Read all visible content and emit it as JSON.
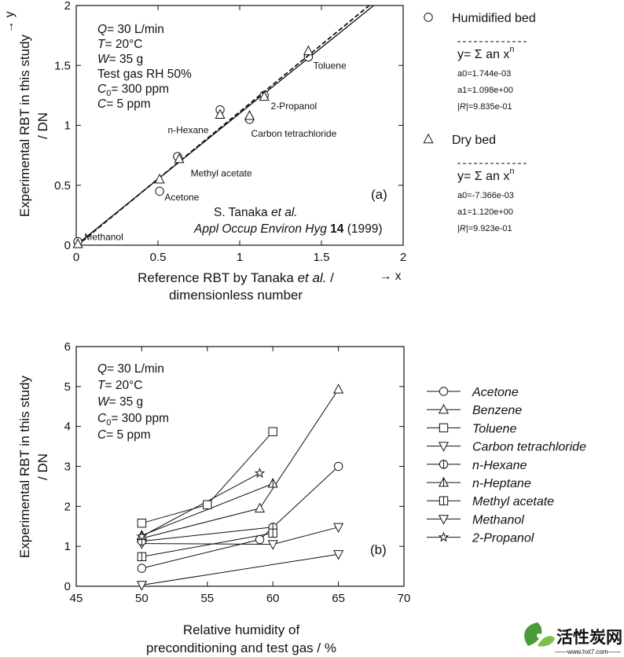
{
  "chart_data": [
    {
      "panel": "a",
      "type": "scatter",
      "xlabel_lines": [
        "Reference RBT by Tanaka",
        "et al.",
        "/",
        "dimensionless number"
      ],
      "ylabel_lines": [
        "Experimental RBT in this study",
        "/ DN"
      ],
      "panel_label": "(a)",
      "x_arrow_label": "→ x",
      "y_arrow_label": "→ y",
      "xlim": [
        0,
        2
      ],
      "ylim": [
        0,
        2
      ],
      "xticks": [
        "0",
        "0.5",
        "1",
        "1.5",
        "2"
      ],
      "yticks": [
        "0",
        "0.5",
        "1",
        "1.5",
        "2"
      ],
      "conditions": [
        {
          "sym": "Q",
          "rest": "= 30 L/min"
        },
        {
          "sym": "T",
          "rest": "= 20°C"
        },
        {
          "sym": "W",
          "rest": "= 35 g"
        },
        {
          "sym": "",
          "rest": "Test gas RH 50%"
        },
        {
          "sym": "C",
          "sub": "0",
          "rest": "= 300 ppm"
        },
        {
          "sym": "C",
          "rest": "= 5 ppm"
        }
      ],
      "reference": {
        "author": "S. Tanaka",
        "etal": "et al.",
        "journal": "Appl Occup Environ Hyg",
        "volume": "14",
        "year": "(1999)"
      },
      "compound_labels": [
        {
          "text": "Toluene",
          "x": 1.45,
          "y": 1.5
        },
        {
          "text": "2-Propanol",
          "x": 1.19,
          "y": 1.16
        },
        {
          "text": "Carbon tetrachloride",
          "x": 1.07,
          "y": 0.93
        },
        {
          "text": "n-Hexane",
          "x": 0.56,
          "y": 0.96
        },
        {
          "text": "Methyl acetate",
          "x": 0.7,
          "y": 0.6
        },
        {
          "text": "Acetone",
          "x": 0.54,
          "y": 0.4
        },
        {
          "text": "Methanol",
          "x": 0.05,
          "y": 0.07
        }
      ],
      "series": [
        {
          "name": "Humidified bed",
          "marker": "circle",
          "fit_style": "solid",
          "points": [
            [
              0.01,
              0.03
            ],
            [
              0.51,
              0.45
            ],
            [
              0.62,
              0.74
            ],
            [
              0.88,
              1.13
            ],
            [
              1.06,
              1.05
            ],
            [
              1.15,
              1.25
            ],
            [
              1.42,
              1.57
            ]
          ],
          "fit": {
            "equation": "y= Σ an x",
            "exp": "n",
            "a0": "a0=1.744e-03",
            "a1": "a1=1.098e+00",
            "R_pre": "|",
            "R_sym": "R",
            "R_post": "|=9.835e-01",
            "a0_val": 0.001744,
            "a1_val": 1.098
          }
        },
        {
          "name": "Dry bed",
          "marker": "triangle",
          "fit_style": "dashed",
          "points": [
            [
              0.01,
              0.01
            ],
            [
              0.51,
              0.55
            ],
            [
              0.63,
              0.72
            ],
            [
              0.88,
              1.09
            ],
            [
              1.06,
              1.08
            ],
            [
              1.15,
              1.24
            ],
            [
              1.42,
              1.62
            ]
          ],
          "fit": {
            "equation": "y= Σ an x",
            "exp": "n",
            "a0": "a0=-7.366e-03",
            "a1": "a1=1.120e+00",
            "R_pre": "|",
            "R_sym": "R",
            "R_post": "|=9.923e-01",
            "a0_val": -0.007366,
            "a1_val": 1.12
          }
        }
      ]
    },
    {
      "panel": "b",
      "type": "line",
      "xlabel_lines": [
        "Relative humidity of",
        "preconditioning and test gas / %"
      ],
      "ylabel_lines": [
        "Experimental RBT in this study",
        "/ DN"
      ],
      "panel_label": "(b)",
      "xlim": [
        45,
        70
      ],
      "ylim": [
        0,
        6
      ],
      "xticks": [
        "45",
        "50",
        "55",
        "60",
        "65",
        "70"
      ],
      "yticks": [
        "0",
        "1",
        "2",
        "3",
        "4",
        "5",
        "6"
      ],
      "conditions": [
        {
          "sym": "Q",
          "rest": "= 30 L/min"
        },
        {
          "sym": "T",
          "rest": "= 20°C"
        },
        {
          "sym": "W",
          "rest": "= 35 g"
        },
        {
          "sym": "C",
          "sub": "0",
          "rest": "= 300 ppm"
        },
        {
          "sym": "C",
          "rest": "= 5 ppm"
        }
      ],
      "series": [
        {
          "name": "Acetone",
          "marker": "circle",
          "x": [
            50,
            59,
            65
          ],
          "y": [
            0.45,
            1.17,
            3.0
          ]
        },
        {
          "name": "Benzene",
          "marker": "triangle",
          "x": [
            50,
            59,
            65
          ],
          "y": [
            1.2,
            1.95,
            4.93
          ]
        },
        {
          "name": "Toluene",
          "marker": "square",
          "x": [
            50,
            55,
            60
          ],
          "y": [
            1.58,
            2.04,
            3.87
          ]
        },
        {
          "name": "Carbon tetrachloride",
          "marker": "triangle-down",
          "x": [
            50,
            60,
            65
          ],
          "y": [
            1.07,
            1.05,
            1.48
          ]
        },
        {
          "name": "n-Hexane",
          "marker": "circle-half",
          "x": [
            50,
            60
          ],
          "y": [
            1.13,
            1.48
          ]
        },
        {
          "name": "n-Heptane",
          "marker": "triangle-half",
          "x": [
            50,
            60
          ],
          "y": [
            1.27,
            2.57
          ]
        },
        {
          "name": "Methyl acetate",
          "marker": "square-half",
          "x": [
            50,
            60
          ],
          "y": [
            0.74,
            1.33
          ]
        },
        {
          "name": "Methanol",
          "marker": "triangle-down",
          "x": [
            50,
            65
          ],
          "y": [
            0.03,
            0.8
          ]
        },
        {
          "name": "2-Propanol",
          "marker": "star",
          "x": [
            50,
            59
          ],
          "y": [
            1.25,
            2.83
          ]
        }
      ]
    }
  ],
  "watermark": {
    "brand": "活性炭网",
    "url": "——www.hxt7.com——"
  }
}
